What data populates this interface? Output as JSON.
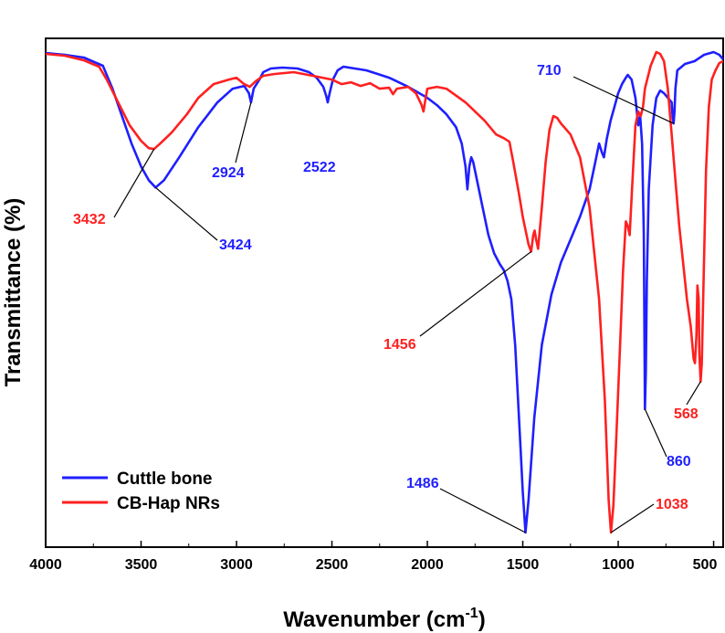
{
  "chart_data": {
    "type": "line",
    "xlabel": "Wavenumber (cm",
    "xlabel_sup": "-1",
    "xlabel_close": ")",
    "ylabel": "Transmittance (%)",
    "xlim": [
      4000,
      450
    ],
    "x_reversed": true,
    "xticks": [
      4000,
      3500,
      3000,
      2500,
      2000,
      1500,
      1000,
      500
    ],
    "y_ticks_shown": false,
    "legend_position": "bottom-left",
    "series": [
      {
        "name": "Cuttle bone",
        "color": "#1f1fff",
        "points": [
          [
            4000,
            1
          ],
          [
            3900,
            3
          ],
          [
            3800,
            6
          ],
          [
            3700,
            15
          ],
          [
            3650,
            40
          ],
          [
            3600,
            70
          ],
          [
            3550,
            100
          ],
          [
            3500,
            125
          ],
          [
            3460,
            140
          ],
          [
            3424,
            148
          ],
          [
            3380,
            140
          ],
          [
            3300,
            115
          ],
          [
            3200,
            82
          ],
          [
            3100,
            55
          ],
          [
            3020,
            40
          ],
          [
            2960,
            37
          ],
          [
            2935,
            45
          ],
          [
            2924,
            55
          ],
          [
            2910,
            40
          ],
          [
            2880,
            30
          ],
          [
            2860,
            22
          ],
          [
            2820,
            18
          ],
          [
            2760,
            17
          ],
          [
            2680,
            18
          ],
          [
            2620,
            22
          ],
          [
            2580,
            28
          ],
          [
            2545,
            38
          ],
          [
            2530,
            48
          ],
          [
            2522,
            55
          ],
          [
            2512,
            45
          ],
          [
            2495,
            30
          ],
          [
            2470,
            20
          ],
          [
            2440,
            16
          ],
          [
            2380,
            18
          ],
          [
            2320,
            20
          ],
          [
            2260,
            24
          ],
          [
            2200,
            28
          ],
          [
            2150,
            33
          ],
          [
            2100,
            38
          ],
          [
            2050,
            44
          ],
          [
            2000,
            50
          ],
          [
            1950,
            58
          ],
          [
            1900,
            68
          ],
          [
            1850,
            82
          ],
          [
            1820,
            100
          ],
          [
            1800,
            125
          ],
          [
            1790,
            150
          ],
          [
            1780,
            125
          ],
          [
            1770,
            115
          ],
          [
            1760,
            120
          ],
          [
            1740,
            140
          ],
          [
            1710,
            170
          ],
          [
            1680,
            200
          ],
          [
            1650,
            220
          ],
          [
            1620,
            232
          ],
          [
            1600,
            238
          ],
          [
            1580,
            250
          ],
          [
            1560,
            270
          ],
          [
            1540,
            320
          ],
          [
            1520,
            400
          ],
          [
            1500,
            480
          ],
          [
            1486,
            525
          ],
          [
            1470,
            490
          ],
          [
            1440,
            400
          ],
          [
            1400,
            320
          ],
          [
            1350,
            265
          ],
          [
            1300,
            230
          ],
          [
            1250,
            205
          ],
          [
            1200,
            180
          ],
          [
            1150,
            150
          ],
          [
            1120,
            120
          ],
          [
            1100,
            100
          ],
          [
            1085,
            110
          ],
          [
            1075,
            115
          ],
          [
            1060,
            95
          ],
          [
            1040,
            75
          ],
          [
            1020,
            60
          ],
          [
            1000,
            45
          ],
          [
            980,
            35
          ],
          [
            960,
            28
          ],
          [
            950,
            25
          ],
          [
            930,
            30
          ],
          [
            910,
            50
          ],
          [
            895,
            80
          ],
          [
            885,
            70
          ],
          [
            875,
            100
          ],
          [
            866,
            200
          ],
          [
            860,
            390
          ],
          [
            855,
            350
          ],
          [
            850,
            250
          ],
          [
            840,
            150
          ],
          [
            820,
            80
          ],
          [
            800,
            50
          ],
          [
            780,
            42
          ],
          [
            760,
            45
          ],
          [
            740,
            50
          ],
          [
            720,
            55
          ],
          [
            715,
            70
          ],
          [
            710,
            78
          ],
          [
            705,
            65
          ],
          [
            700,
            40
          ],
          [
            690,
            20
          ],
          [
            650,
            13
          ],
          [
            600,
            10
          ],
          [
            550,
            3
          ],
          [
            500,
            0
          ],
          [
            470,
            3
          ],
          [
            450,
            8
          ]
        ]
      },
      {
        "name": "CB-Hap NRs",
        "color": "#ff2020",
        "points": [
          [
            4000,
            2
          ],
          [
            3900,
            4
          ],
          [
            3800,
            9
          ],
          [
            3720,
            16
          ],
          [
            3680,
            30
          ],
          [
            3620,
            55
          ],
          [
            3560,
            80
          ],
          [
            3500,
            97
          ],
          [
            3460,
            105
          ],
          [
            3432,
            106
          ],
          [
            3400,
            100
          ],
          [
            3340,
            88
          ],
          [
            3260,
            68
          ],
          [
            3200,
            50
          ],
          [
            3120,
            35
          ],
          [
            3040,
            30
          ],
          [
            3000,
            28
          ],
          [
            2960,
            35
          ],
          [
            2930,
            38
          ],
          [
            2900,
            32
          ],
          [
            2860,
            26
          ],
          [
            2800,
            24
          ],
          [
            2700,
            22
          ],
          [
            2600,
            26
          ],
          [
            2500,
            30
          ],
          [
            2450,
            35
          ],
          [
            2400,
            33
          ],
          [
            2350,
            37
          ],
          [
            2300,
            34
          ],
          [
            2250,
            40
          ],
          [
            2200,
            39
          ],
          [
            2180,
            46
          ],
          [
            2160,
            40
          ],
          [
            2100,
            38
          ],
          [
            2060,
            45
          ],
          [
            2030,
            58
          ],
          [
            2020,
            65
          ],
          [
            2010,
            52
          ],
          [
            2000,
            40
          ],
          [
            1950,
            38
          ],
          [
            1900,
            40
          ],
          [
            1800,
            55
          ],
          [
            1700,
            75
          ],
          [
            1640,
            90
          ],
          [
            1600,
            94
          ],
          [
            1570,
            98
          ],
          [
            1550,
            120
          ],
          [
            1520,
            155
          ],
          [
            1500,
            180
          ],
          [
            1480,
            200
          ],
          [
            1470,
            210
          ],
          [
            1456,
            218
          ],
          [
            1445,
            200
          ],
          [
            1438,
            195
          ],
          [
            1430,
            205
          ],
          [
            1420,
            215
          ],
          [
            1400,
            170
          ],
          [
            1380,
            120
          ],
          [
            1360,
            85
          ],
          [
            1340,
            70
          ],
          [
            1320,
            72
          ],
          [
            1300,
            78
          ],
          [
            1250,
            90
          ],
          [
            1200,
            115
          ],
          [
            1150,
            170
          ],
          [
            1100,
            270
          ],
          [
            1070,
            380
          ],
          [
            1050,
            490
          ],
          [
            1038,
            525
          ],
          [
            1025,
            495
          ],
          [
            1010,
            420
          ],
          [
            990,
            320
          ],
          [
            975,
            240
          ],
          [
            960,
            185
          ],
          [
            950,
            190
          ],
          [
            940,
            200
          ],
          [
            925,
            140
          ],
          [
            910,
            80
          ],
          [
            895,
            65
          ],
          [
            882,
            70
          ],
          [
            870,
            60
          ],
          [
            860,
            40
          ],
          [
            830,
            15
          ],
          [
            800,
            0
          ],
          [
            780,
            2
          ],
          [
            760,
            10
          ],
          [
            740,
            40
          ],
          [
            720,
            90
          ],
          [
            700,
            140
          ],
          [
            680,
            190
          ],
          [
            660,
            230
          ],
          [
            640,
            270
          ],
          [
            620,
            300
          ],
          [
            605,
            335
          ],
          [
            598,
            340
          ],
          [
            590,
            310
          ],
          [
            585,
            255
          ],
          [
            578,
            270
          ],
          [
            575,
            330
          ],
          [
            568,
            360
          ],
          [
            562,
            340
          ],
          [
            555,
            270
          ],
          [
            540,
            130
          ],
          [
            525,
            60
          ],
          [
            510,
            30
          ],
          [
            490,
            20
          ],
          [
            470,
            12
          ],
          [
            450,
            10
          ]
        ]
      }
    ],
    "annotations": [
      {
        "label": "3432",
        "color": "#ff2020",
        "x": 3432,
        "series": 1
      },
      {
        "label": "3424",
        "color": "#1f1fff",
        "x": 3424,
        "series": 0
      },
      {
        "label": "2924",
        "color": "#1f1fff",
        "x": 2924,
        "series": 0
      },
      {
        "label": "2522",
        "color": "#1f1fff",
        "x": 2522,
        "series": 0
      },
      {
        "label": "1456",
        "color": "#ff2020",
        "x": 1456,
        "series": 1
      },
      {
        "label": "1486",
        "color": "#1f1fff",
        "x": 1486,
        "series": 0
      },
      {
        "label": "1038",
        "color": "#ff2020",
        "x": 1038,
        "series": 1
      },
      {
        "label": "710",
        "color": "#1f1fff",
        "x": 710,
        "series": 0
      },
      {
        "label": "860",
        "color": "#1f1fff",
        "x": 860,
        "series": 0
      },
      {
        "label": "568",
        "color": "#ff2020",
        "x": 568,
        "series": 1
      }
    ]
  }
}
